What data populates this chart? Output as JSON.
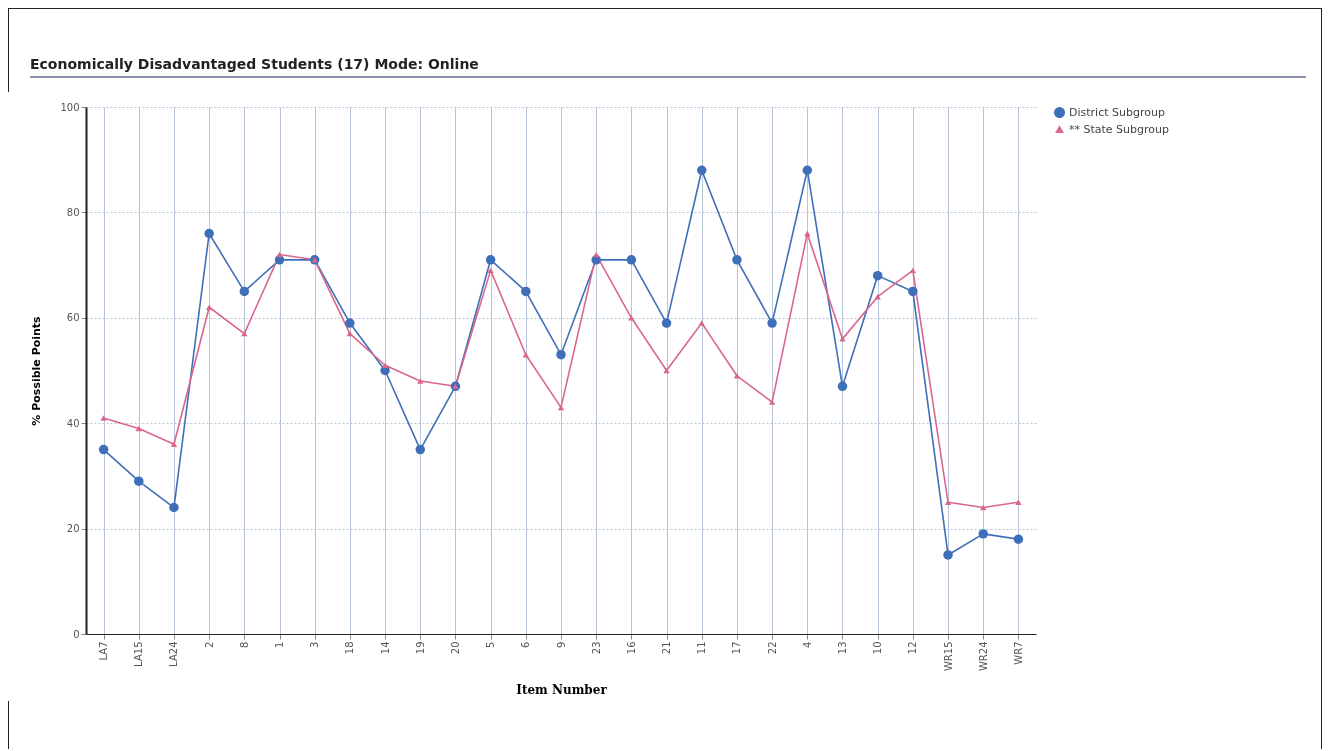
{
  "chart_data": {
    "type": "line",
    "title": "Economically Disadvantaged Students (17)  Mode: Online",
    "xlabel": "Item Number",
    "ylabel": "% Possible Points",
    "categories": [
      "LA7",
      "LA15",
      "LA24",
      "2",
      "8",
      "1",
      "3",
      "18",
      "14",
      "19",
      "20",
      "5",
      "6",
      "9",
      "23",
      "16",
      "21",
      "11",
      "17",
      "22",
      "4",
      "13",
      "10",
      "12",
      "WR15",
      "WR24",
      "WR7"
    ],
    "series": [
      {
        "name": "District Subgroup",
        "color": "#3f6fb8",
        "marker": "circle",
        "values": [
          35,
          29,
          24,
          76,
          65,
          71,
          71,
          59,
          50,
          35,
          47,
          71,
          65,
          53,
          71,
          71,
          59,
          88,
          71,
          59,
          88,
          47,
          68,
          65,
          15,
          19,
          18
        ]
      },
      {
        "name": "** State Subgroup",
        "color": "#d9668f",
        "marker": "triangle",
        "values": [
          41,
          39,
          36,
          62,
          57,
          72,
          71,
          57,
          51,
          48,
          47,
          69,
          53,
          43,
          72,
          60,
          50,
          59,
          49,
          44,
          76,
          56,
          64,
          69,
          25,
          24,
          25
        ]
      }
    ],
    "ylim": [
      0,
      100
    ],
    "yticks": [
      0,
      20,
      40,
      60,
      80,
      100
    ],
    "grid": true,
    "legend": "top right",
    "line_style": "solid"
  }
}
